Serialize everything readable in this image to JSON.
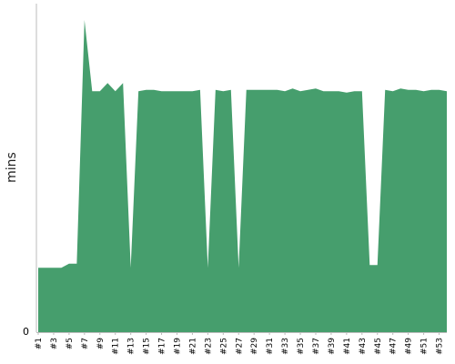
{
  "chart_data": {
    "type": "area",
    "title": "",
    "xlabel": "",
    "ylabel": "mins",
    "ylim": [
      0,
      2.4
    ],
    "y_ticks": [
      "0"
    ],
    "grid": false,
    "legend": "none",
    "fill_color": "#469e6d",
    "axis_color": "#bbbbbb",
    "x": [
      "#1",
      "#2",
      "#3",
      "#4",
      "#5",
      "#6",
      "#7",
      "#8",
      "#9",
      "#10",
      "#11",
      "#12",
      "#13",
      "#14",
      "#15",
      "#16",
      "#17",
      "#18",
      "#19",
      "#20",
      "#21",
      "#22",
      "#23",
      "#24",
      "#25",
      "#26",
      "#27",
      "#28",
      "#29",
      "#30",
      "#31",
      "#32",
      "#33",
      "#34",
      "#35",
      "#36",
      "#37",
      "#38",
      "#39",
      "#40",
      "#41",
      "#42",
      "#43",
      "#44",
      "#45",
      "#46",
      "#47",
      "#48",
      "#49",
      "#50",
      "#51",
      "#52",
      "#53",
      "#54"
    ],
    "x_tick_labels": [
      "#1",
      "#3",
      "#5",
      "#7",
      "#9",
      "#11",
      "#13",
      "#15",
      "#17",
      "#19",
      "#21",
      "#23",
      "#25",
      "#27",
      "#29",
      "#31",
      "#33",
      "#35",
      "#37",
      "#39",
      "#41",
      "#43",
      "#45",
      "#47",
      "#49",
      "#51",
      "#53"
    ],
    "values": [
      0.47,
      0.47,
      0.47,
      0.47,
      0.5,
      0.5,
      2.28,
      1.76,
      1.76,
      1.82,
      1.76,
      1.82,
      0.47,
      1.76,
      1.77,
      1.77,
      1.76,
      1.76,
      1.76,
      1.76,
      1.76,
      1.77,
      0.47,
      1.77,
      1.76,
      1.77,
      0.47,
      1.77,
      1.77,
      1.77,
      1.77,
      1.77,
      1.76,
      1.78,
      1.76,
      1.77,
      1.78,
      1.76,
      1.76,
      1.76,
      1.75,
      1.76,
      1.76,
      0.49,
      0.49,
      1.77,
      1.76,
      1.78,
      1.77,
      1.77,
      1.76,
      1.77,
      1.77,
      1.76
    ]
  }
}
